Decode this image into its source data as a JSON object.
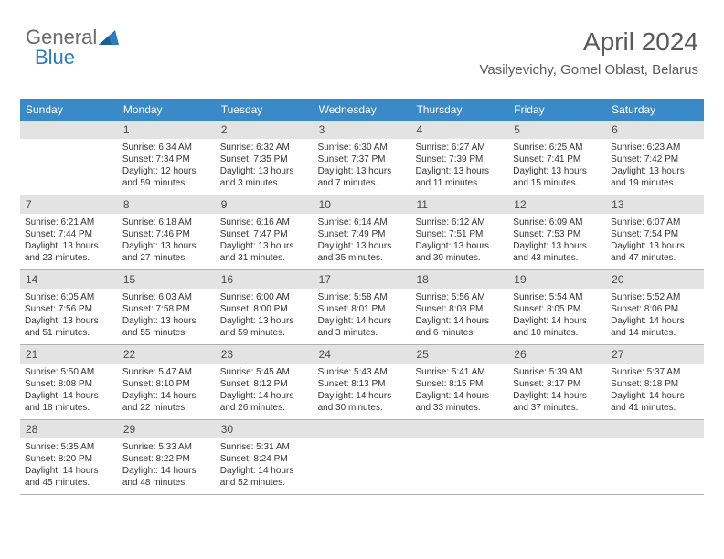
{
  "logo": {
    "text1": "General",
    "text2": "Blue"
  },
  "header": {
    "title": "April 2024",
    "location": "Vasilyevichy, Gomel Oblast, Belarus"
  },
  "colors": {
    "header_bg": "#3a8ac8",
    "header_text": "#ffffff",
    "shaded_bg": "#e3e3e3",
    "text": "#333333",
    "title_text": "#5a5a5a",
    "border": "#b0b0b0",
    "logo_blue": "#2a7dc0"
  },
  "day_names": [
    "Sunday",
    "Monday",
    "Tuesday",
    "Wednesday",
    "Thursday",
    "Friday",
    "Saturday"
  ],
  "weeks": [
    [
      {
        "n": "",
        "sr": "",
        "ss": "",
        "d1": "",
        "d2": ""
      },
      {
        "n": "1",
        "sr": "Sunrise: 6:34 AM",
        "ss": "Sunset: 7:34 PM",
        "d1": "Daylight: 12 hours",
        "d2": "and 59 minutes."
      },
      {
        "n": "2",
        "sr": "Sunrise: 6:32 AM",
        "ss": "Sunset: 7:35 PM",
        "d1": "Daylight: 13 hours",
        "d2": "and 3 minutes."
      },
      {
        "n": "3",
        "sr": "Sunrise: 6:30 AM",
        "ss": "Sunset: 7:37 PM",
        "d1": "Daylight: 13 hours",
        "d2": "and 7 minutes."
      },
      {
        "n": "4",
        "sr": "Sunrise: 6:27 AM",
        "ss": "Sunset: 7:39 PM",
        "d1": "Daylight: 13 hours",
        "d2": "and 11 minutes."
      },
      {
        "n": "5",
        "sr": "Sunrise: 6:25 AM",
        "ss": "Sunset: 7:41 PM",
        "d1": "Daylight: 13 hours",
        "d2": "and 15 minutes."
      },
      {
        "n": "6",
        "sr": "Sunrise: 6:23 AM",
        "ss": "Sunset: 7:42 PM",
        "d1": "Daylight: 13 hours",
        "d2": "and 19 minutes."
      }
    ],
    [
      {
        "n": "7",
        "sr": "Sunrise: 6:21 AM",
        "ss": "Sunset: 7:44 PM",
        "d1": "Daylight: 13 hours",
        "d2": "and 23 minutes."
      },
      {
        "n": "8",
        "sr": "Sunrise: 6:18 AM",
        "ss": "Sunset: 7:46 PM",
        "d1": "Daylight: 13 hours",
        "d2": "and 27 minutes."
      },
      {
        "n": "9",
        "sr": "Sunrise: 6:16 AM",
        "ss": "Sunset: 7:47 PM",
        "d1": "Daylight: 13 hours",
        "d2": "and 31 minutes."
      },
      {
        "n": "10",
        "sr": "Sunrise: 6:14 AM",
        "ss": "Sunset: 7:49 PM",
        "d1": "Daylight: 13 hours",
        "d2": "and 35 minutes."
      },
      {
        "n": "11",
        "sr": "Sunrise: 6:12 AM",
        "ss": "Sunset: 7:51 PM",
        "d1": "Daylight: 13 hours",
        "d2": "and 39 minutes."
      },
      {
        "n": "12",
        "sr": "Sunrise: 6:09 AM",
        "ss": "Sunset: 7:53 PM",
        "d1": "Daylight: 13 hours",
        "d2": "and 43 minutes."
      },
      {
        "n": "13",
        "sr": "Sunrise: 6:07 AM",
        "ss": "Sunset: 7:54 PM",
        "d1": "Daylight: 13 hours",
        "d2": "and 47 minutes."
      }
    ],
    [
      {
        "n": "14",
        "sr": "Sunrise: 6:05 AM",
        "ss": "Sunset: 7:56 PM",
        "d1": "Daylight: 13 hours",
        "d2": "and 51 minutes."
      },
      {
        "n": "15",
        "sr": "Sunrise: 6:03 AM",
        "ss": "Sunset: 7:58 PM",
        "d1": "Daylight: 13 hours",
        "d2": "and 55 minutes."
      },
      {
        "n": "16",
        "sr": "Sunrise: 6:00 AM",
        "ss": "Sunset: 8:00 PM",
        "d1": "Daylight: 13 hours",
        "d2": "and 59 minutes."
      },
      {
        "n": "17",
        "sr": "Sunrise: 5:58 AM",
        "ss": "Sunset: 8:01 PM",
        "d1": "Daylight: 14 hours",
        "d2": "and 3 minutes."
      },
      {
        "n": "18",
        "sr": "Sunrise: 5:56 AM",
        "ss": "Sunset: 8:03 PM",
        "d1": "Daylight: 14 hours",
        "d2": "and 6 minutes."
      },
      {
        "n": "19",
        "sr": "Sunrise: 5:54 AM",
        "ss": "Sunset: 8:05 PM",
        "d1": "Daylight: 14 hours",
        "d2": "and 10 minutes."
      },
      {
        "n": "20",
        "sr": "Sunrise: 5:52 AM",
        "ss": "Sunset: 8:06 PM",
        "d1": "Daylight: 14 hours",
        "d2": "and 14 minutes."
      }
    ],
    [
      {
        "n": "21",
        "sr": "Sunrise: 5:50 AM",
        "ss": "Sunset: 8:08 PM",
        "d1": "Daylight: 14 hours",
        "d2": "and 18 minutes."
      },
      {
        "n": "22",
        "sr": "Sunrise: 5:47 AM",
        "ss": "Sunset: 8:10 PM",
        "d1": "Daylight: 14 hours",
        "d2": "and 22 minutes."
      },
      {
        "n": "23",
        "sr": "Sunrise: 5:45 AM",
        "ss": "Sunset: 8:12 PM",
        "d1": "Daylight: 14 hours",
        "d2": "and 26 minutes."
      },
      {
        "n": "24",
        "sr": "Sunrise: 5:43 AM",
        "ss": "Sunset: 8:13 PM",
        "d1": "Daylight: 14 hours",
        "d2": "and 30 minutes."
      },
      {
        "n": "25",
        "sr": "Sunrise: 5:41 AM",
        "ss": "Sunset: 8:15 PM",
        "d1": "Daylight: 14 hours",
        "d2": "and 33 minutes."
      },
      {
        "n": "26",
        "sr": "Sunrise: 5:39 AM",
        "ss": "Sunset: 8:17 PM",
        "d1": "Daylight: 14 hours",
        "d2": "and 37 minutes."
      },
      {
        "n": "27",
        "sr": "Sunrise: 5:37 AM",
        "ss": "Sunset: 8:18 PM",
        "d1": "Daylight: 14 hours",
        "d2": "and 41 minutes."
      }
    ],
    [
      {
        "n": "28",
        "sr": "Sunrise: 5:35 AM",
        "ss": "Sunset: 8:20 PM",
        "d1": "Daylight: 14 hours",
        "d2": "and 45 minutes."
      },
      {
        "n": "29",
        "sr": "Sunrise: 5:33 AM",
        "ss": "Sunset: 8:22 PM",
        "d1": "Daylight: 14 hours",
        "d2": "and 48 minutes."
      },
      {
        "n": "30",
        "sr": "Sunrise: 5:31 AM",
        "ss": "Sunset: 8:24 PM",
        "d1": "Daylight: 14 hours",
        "d2": "and 52 minutes."
      },
      {
        "n": "",
        "sr": "",
        "ss": "",
        "d1": "",
        "d2": ""
      },
      {
        "n": "",
        "sr": "",
        "ss": "",
        "d1": "",
        "d2": ""
      },
      {
        "n": "",
        "sr": "",
        "ss": "",
        "d1": "",
        "d2": ""
      },
      {
        "n": "",
        "sr": "",
        "ss": "",
        "d1": "",
        "d2": ""
      }
    ]
  ]
}
